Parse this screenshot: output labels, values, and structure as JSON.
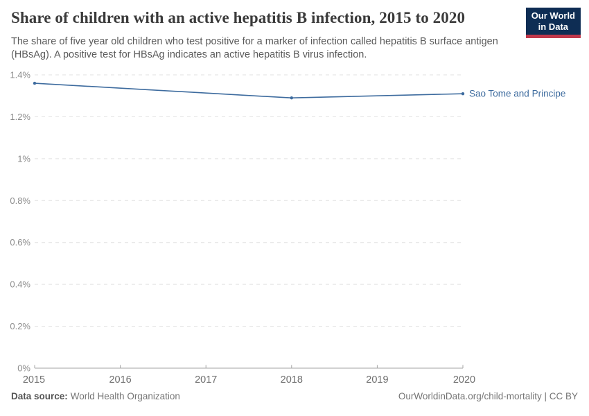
{
  "logo": {
    "line1": "Our World",
    "line2": "in Data",
    "bg_color": "#0e2d54",
    "stripe_color": "#c0384b"
  },
  "chart_data": {
    "type": "line",
    "title": "Share of children with an active hepatitis B infection, 2015 to 2020",
    "subtitle": "The share of five year old children who test positive for a marker of infection called hepatitis B surface antigen (HBsAg). A positive test for HBsAg indicates an active hepatitis B virus infection.",
    "entity": "Sao Tome and Principe",
    "unit": "%",
    "x": [
      2015,
      2018,
      2020
    ],
    "values": [
      1.36,
      1.29,
      1.31
    ],
    "xlim": [
      2015,
      2020
    ],
    "ylim": [
      0,
      1.4
    ],
    "x_ticks": [
      2015,
      2016,
      2017,
      2018,
      2019,
      2020
    ],
    "y_ticks": [
      0,
      0.2,
      0.4,
      0.6,
      0.8,
      1,
      1.2,
      1.4
    ],
    "y_tick_labels": [
      "0%",
      "0.2%",
      "0.4%",
      "0.6%",
      "0.8%",
      "1%",
      "1.2%",
      "1.4%"
    ],
    "line_color": "#3d6b9e",
    "grid": true,
    "legend_position": "end-of-line"
  },
  "footer": {
    "data_source_label": "Data source:",
    "data_source_value": "World Health Organization",
    "attribution": "OurWorldinData.org/child-mortality | CC BY"
  }
}
